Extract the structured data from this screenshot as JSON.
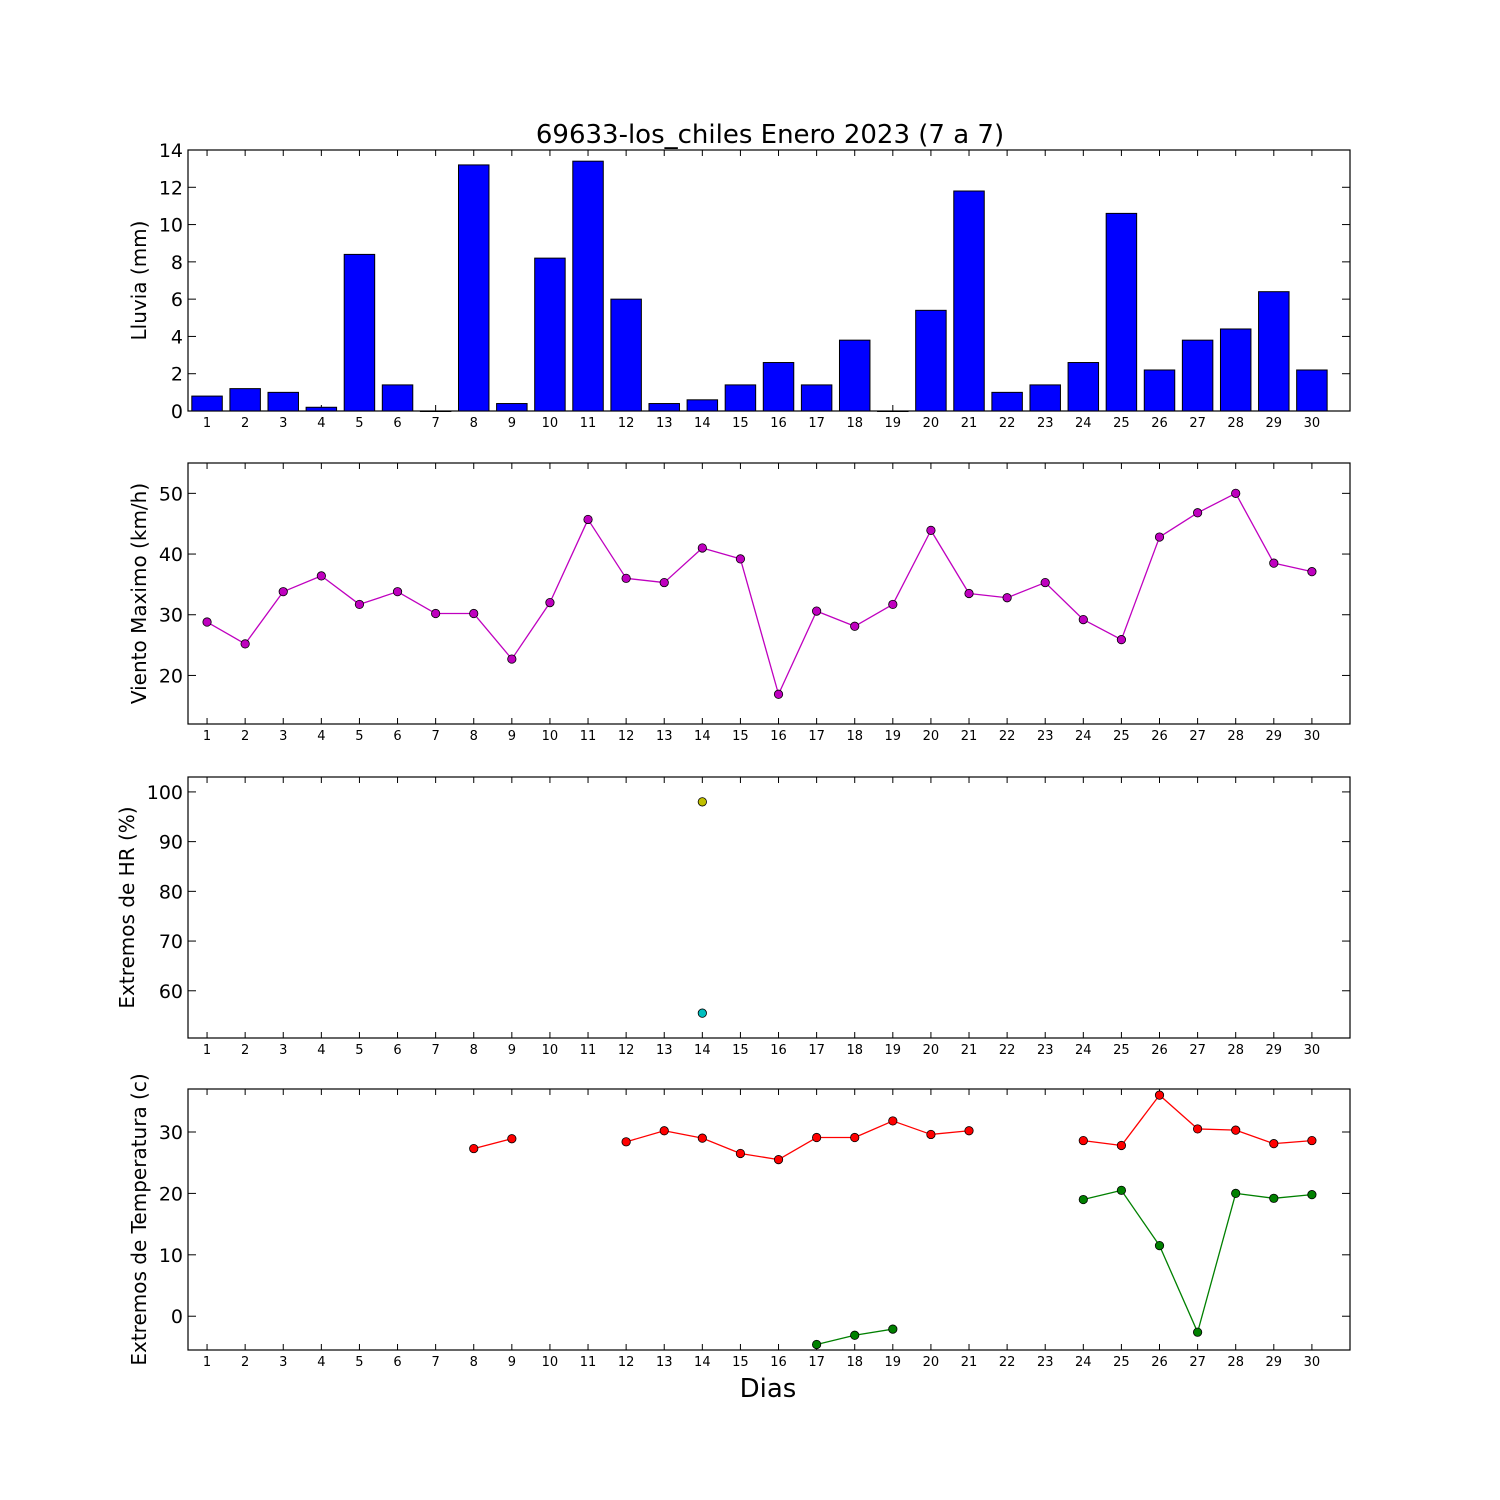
{
  "figure": {
    "title": "69633-los_chiles Enero 2023  (7 a 7)",
    "xlabel": "Dias"
  },
  "chart_data": [
    {
      "type": "bar",
      "ylabel": "Lluvia (mm)",
      "ylim": [
        0,
        14
      ],
      "yticks": [
        0,
        2,
        4,
        6,
        8,
        10,
        12,
        14
      ],
      "categories": [
        1,
        2,
        3,
        4,
        5,
        6,
        7,
        8,
        9,
        10,
        11,
        12,
        13,
        14,
        15,
        16,
        17,
        18,
        19,
        20,
        21,
        22,
        23,
        24,
        25,
        26,
        27,
        28,
        29,
        30
      ],
      "bar_color": "#0000ff",
      "values": [
        0.8,
        1.2,
        1.0,
        0.2,
        8.4,
        1.4,
        0.0,
        13.2,
        0.4,
        8.2,
        13.4,
        6.0,
        0.4,
        0.6,
        1.4,
        2.6,
        1.4,
        3.8,
        0.0,
        5.4,
        11.8,
        1.0,
        1.4,
        2.6,
        10.6,
        2.2,
        3.8,
        4.4,
        6.4,
        2.2
      ]
    },
    {
      "type": "line",
      "ylabel": "Viento Maximo (km/h)",
      "ylim": [
        12,
        55
      ],
      "yticks": [
        20,
        30,
        40,
        50
      ],
      "x": [
        1,
        2,
        3,
        4,
        5,
        6,
        7,
        8,
        9,
        10,
        11,
        12,
        13,
        14,
        15,
        16,
        17,
        18,
        19,
        20,
        21,
        22,
        23,
        24,
        25,
        26,
        27,
        28,
        29,
        30
      ],
      "series": [
        {
          "color": "#bf00bf",
          "values": [
            28.8,
            25.2,
            33.8,
            36.4,
            31.7,
            33.8,
            30.2,
            30.2,
            22.7,
            32.0,
            45.7,
            36.0,
            35.3,
            41.0,
            39.2,
            16.9,
            30.6,
            28.1,
            31.7,
            43.9,
            33.5,
            32.8,
            35.3,
            29.2,
            25.9,
            42.8,
            46.8,
            50.0,
            38.5,
            37.1
          ]
        }
      ]
    },
    {
      "type": "scatter",
      "ylabel": "Extremos de HR (%)",
      "ylim": [
        50.5,
        103
      ],
      "yticks": [
        60,
        70,
        80,
        90,
        100
      ],
      "x": [
        1,
        2,
        3,
        4,
        5,
        6,
        7,
        8,
        9,
        10,
        11,
        12,
        13,
        14,
        15,
        16,
        17,
        18,
        19,
        20,
        21,
        22,
        23,
        24,
        25,
        26,
        27,
        28,
        29,
        30
      ],
      "series": [
        {
          "color": "#bfbf00",
          "values": [
            null,
            null,
            null,
            null,
            null,
            null,
            null,
            null,
            null,
            null,
            null,
            null,
            null,
            98.0,
            null,
            null,
            null,
            null,
            null,
            null,
            null,
            null,
            null,
            null,
            null,
            null,
            null,
            null,
            null,
            null
          ]
        },
        {
          "color": "#00bfbf",
          "values": [
            null,
            null,
            null,
            null,
            null,
            null,
            null,
            null,
            null,
            null,
            null,
            null,
            null,
            55.5,
            null,
            null,
            null,
            null,
            null,
            null,
            null,
            null,
            null,
            null,
            null,
            null,
            null,
            null,
            null,
            null
          ]
        }
      ]
    },
    {
      "type": "line",
      "ylabel": "Extremos de Temperatura (c)",
      "ylim": [
        -5.5,
        37
      ],
      "yticks": [
        0,
        10,
        20,
        30
      ],
      "x": [
        1,
        2,
        3,
        4,
        5,
        6,
        7,
        8,
        9,
        10,
        11,
        12,
        13,
        14,
        15,
        16,
        17,
        18,
        19,
        20,
        21,
        22,
        23,
        24,
        25,
        26,
        27,
        28,
        29,
        30
      ],
      "series": [
        {
          "color": "#ff0000",
          "values": [
            null,
            null,
            null,
            null,
            null,
            null,
            null,
            27.3,
            28.9,
            null,
            null,
            28.4,
            30.2,
            29.0,
            26.5,
            25.5,
            29.1,
            29.1,
            31.8,
            29.6,
            30.2,
            null,
            null,
            28.6,
            27.8,
            36.0,
            30.5,
            30.3,
            28.1,
            28.6
          ]
        },
        {
          "color": "#008000",
          "values": [
            null,
            null,
            null,
            null,
            null,
            null,
            null,
            null,
            null,
            null,
            null,
            null,
            null,
            null,
            null,
            null,
            -4.6,
            -3.1,
            -2.1,
            null,
            null,
            null,
            null,
            19.0,
            20.5,
            11.5,
            -2.6,
            20.0,
            19.2,
            19.8
          ]
        }
      ]
    }
  ]
}
